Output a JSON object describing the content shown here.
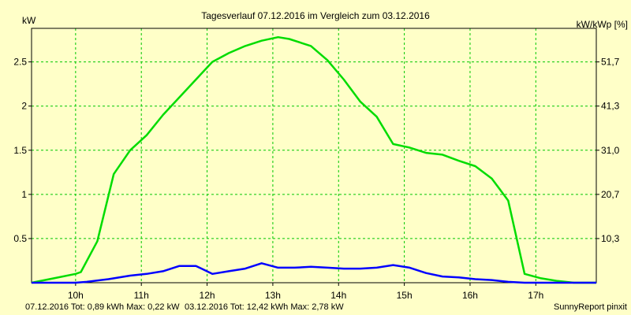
{
  "colors": {
    "background": "#ffffc8",
    "grid": "#00c800",
    "series_current": "#0000ff",
    "series_compare": "#00dc00",
    "axis": "#000000"
  },
  "footer": {
    "current_summary": "07.12.2016 Tot: 0,89 kWh Max: 0,22 kW",
    "compare_summary": "03.12.2016 Tot: 12,42 kWh Max: 2,78 kW",
    "credit": "SunnyReport pinxit"
  },
  "chart_data": {
    "type": "line",
    "title": "Tagesverlauf 07.12.2016 im Vergleich zum 03.12.2016",
    "ylabel": "kW",
    "y2label": "kW/kWp [%]",
    "xlim": [
      9.33,
      17.92
    ],
    "ylim": [
      0,
      2.88
    ],
    "x_ticks": [
      10,
      11,
      12,
      13,
      14,
      15,
      16,
      17
    ],
    "x_tick_labels": [
      "10h",
      "11h",
      "12h",
      "13h",
      "14h",
      "15h",
      "16h",
      "17h"
    ],
    "y_ticks": [
      0.5,
      1,
      1.5,
      2,
      2.5
    ],
    "y_tick_labels": [
      "0.5",
      "1",
      "1.5",
      "2",
      "2.5"
    ],
    "y2_ticks": [
      0.5,
      1,
      1.5,
      2,
      2.5
    ],
    "y2_tick_labels": [
      "10,3",
      "20,7",
      "31,0",
      "41,3",
      "51,7"
    ],
    "grid": true,
    "series": [
      {
        "name": "03.12.2016",
        "color": "#00dc00",
        "x": [
          9.33,
          9.67,
          10.0,
          10.08,
          10.33,
          10.58,
          10.83,
          11.08,
          11.33,
          11.58,
          11.83,
          12.08,
          12.33,
          12.58,
          12.83,
          13.08,
          13.25,
          13.58,
          13.83,
          14.08,
          14.33,
          14.58,
          14.83,
          15.08,
          15.33,
          15.58,
          15.83,
          16.08,
          16.33,
          16.58,
          16.83,
          17.08,
          17.33,
          17.58,
          17.92
        ],
        "y": [
          0.0,
          0.05,
          0.1,
          0.12,
          0.47,
          1.23,
          1.5,
          1.67,
          1.9,
          2.1,
          2.3,
          2.5,
          2.6,
          2.68,
          2.74,
          2.78,
          2.76,
          2.68,
          2.52,
          2.3,
          2.05,
          1.88,
          1.57,
          1.53,
          1.47,
          1.45,
          1.38,
          1.32,
          1.18,
          0.93,
          0.1,
          0.05,
          0.02,
          0.0,
          0.0
        ]
      },
      {
        "name": "07.12.2016",
        "color": "#0000ff",
        "x": [
          9.33,
          9.67,
          10.0,
          10.17,
          10.5,
          10.83,
          11.08,
          11.33,
          11.58,
          11.83,
          12.08,
          12.33,
          12.58,
          12.83,
          13.08,
          13.33,
          13.58,
          13.83,
          14.08,
          14.33,
          14.58,
          14.83,
          15.08,
          15.33,
          15.58,
          15.83,
          16.08,
          16.33,
          16.58,
          16.83,
          17.08,
          17.33,
          17.58,
          17.92
        ],
        "y": [
          0.0,
          0.0,
          0.0,
          0.01,
          0.04,
          0.08,
          0.1,
          0.13,
          0.19,
          0.19,
          0.1,
          0.13,
          0.16,
          0.22,
          0.17,
          0.17,
          0.18,
          0.17,
          0.16,
          0.16,
          0.17,
          0.2,
          0.17,
          0.11,
          0.07,
          0.06,
          0.04,
          0.03,
          0.01,
          0.0,
          0.0,
          0.0,
          0.0,
          0.0
        ]
      }
    ]
  }
}
